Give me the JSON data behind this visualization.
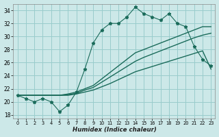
{
  "xlabel": "Humidex (Indice chaleur)",
  "bg_color": "#cce8e8",
  "grid_color": "#99cccc",
  "line_color": "#1a6b5a",
  "xlim": [
    -0.5,
    23.5
  ],
  "ylim": [
    17.5,
    35
  ],
  "xticks": [
    0,
    1,
    2,
    3,
    4,
    5,
    6,
    7,
    8,
    9,
    10,
    11,
    12,
    13,
    14,
    15,
    16,
    17,
    18,
    19,
    20,
    21,
    22,
    23
  ],
  "yticks": [
    18,
    20,
    22,
    24,
    26,
    28,
    30,
    32,
    34
  ],
  "x": [
    0,
    1,
    2,
    3,
    4,
    5,
    6,
    7,
    8,
    9,
    10,
    11,
    12,
    13,
    14,
    15,
    16,
    17,
    18,
    19,
    20,
    21,
    22,
    23
  ],
  "y_jagged": [
    21,
    20.5,
    20,
    20.5,
    20,
    18.5,
    19.5,
    21.5,
    25,
    29,
    31,
    32,
    32,
    33,
    34.5,
    33.5,
    33,
    32.5,
    33.5,
    32,
    31.5,
    28.5,
    26.5,
    25.5
  ],
  "y_upper": [
    21,
    21,
    21,
    21,
    21,
    21,
    21.2,
    21.5,
    22,
    22.5,
    23.5,
    24.5,
    25.5,
    26.5,
    27.5,
    28,
    28.5,
    29,
    29.5,
    30,
    30.5,
    31,
    31.5,
    31.5
  ],
  "y_mid": [
    21,
    21,
    21,
    21,
    21,
    21,
    21.1,
    21.3,
    21.8,
    22.2,
    23,
    23.8,
    24.6,
    25.4,
    26.2,
    26.8,
    27.3,
    27.8,
    28.3,
    28.8,
    29.3,
    29.8,
    30.2,
    30.5
  ],
  "y_lower": [
    21,
    21,
    21,
    21,
    21,
    21,
    21.0,
    21.2,
    21.5,
    21.8,
    22.3,
    22.8,
    23.4,
    24.0,
    24.6,
    25.0,
    25.4,
    25.8,
    26.2,
    26.6,
    27.0,
    27.4,
    27.8,
    25
  ]
}
